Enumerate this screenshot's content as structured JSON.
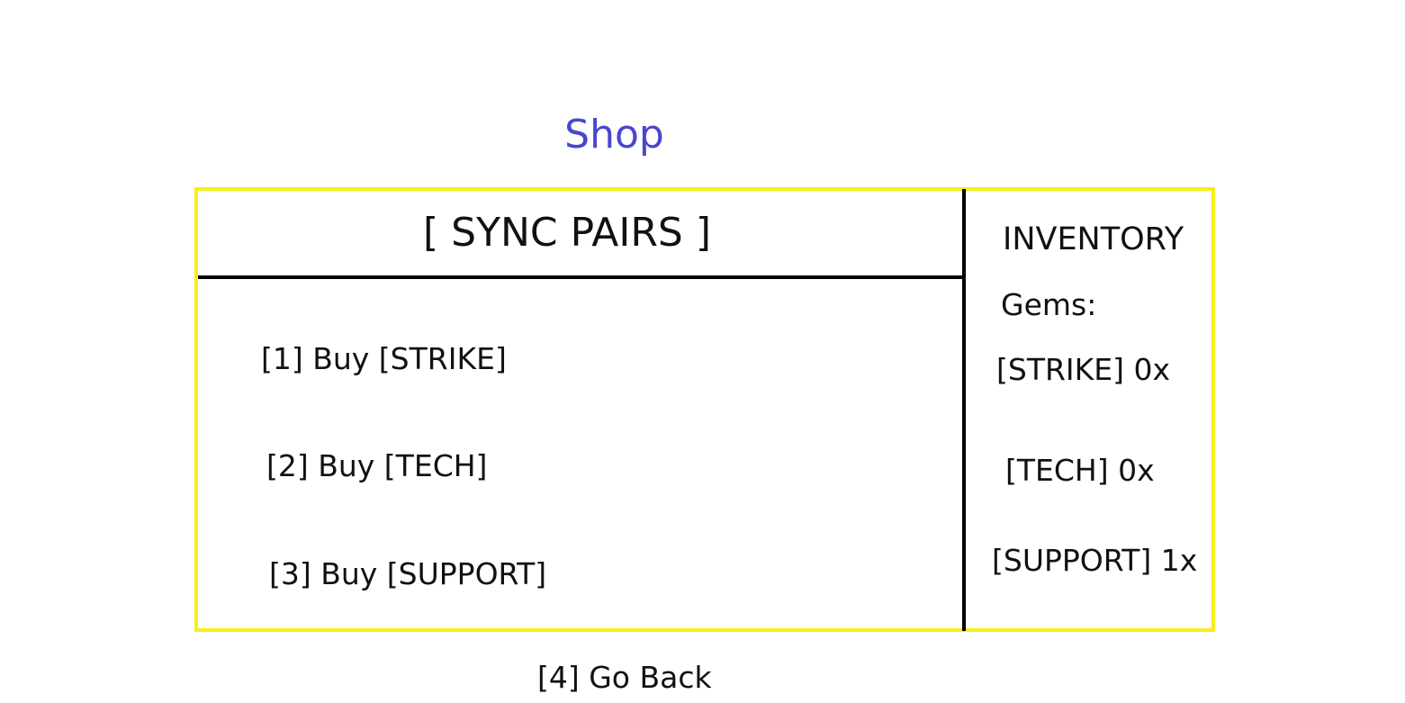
{
  "screen": {
    "title": "Shop",
    "title_color": "#4747d1",
    "frame_color": "#f6ef1b"
  },
  "shop": {
    "category": "[ SYNC PAIRS ]",
    "options": [
      "[1] Buy [STRIKE]",
      "[2] Buy [TECH]",
      "[3] Buy [SUPPORT]"
    ],
    "back": "[4] Go Back"
  },
  "inventory": {
    "title": "INVENTORY",
    "gems_label": "Gems:",
    "items": [
      "[STRIKE] 0x",
      "[TECH] 0x",
      "[SUPPORT] 1x"
    ]
  }
}
